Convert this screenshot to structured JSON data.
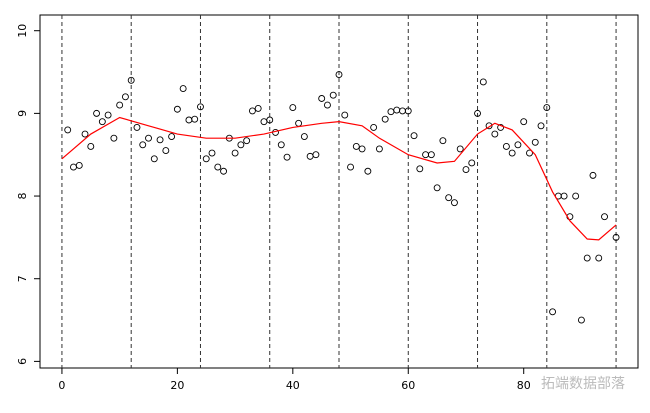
{
  "chart_data": {
    "type": "scatter",
    "xlim": [
      -3.8,
      99.8
    ],
    "ylim": [
      5.92,
      10.19
    ],
    "xticks": [
      0,
      20,
      40,
      60,
      80
    ],
    "yticks": [
      6,
      7,
      8,
      9,
      10
    ],
    "vlines": [
      0,
      12,
      24,
      36,
      48,
      60,
      72,
      84,
      96
    ],
    "watermark": "拓端数据部落",
    "series": [
      {
        "style": "points",
        "color": "#000000",
        "x": [
          1,
          2,
          3,
          4,
          5,
          6,
          7,
          8,
          9,
          10,
          11,
          12,
          13,
          14,
          15,
          16,
          17,
          18,
          19,
          20,
          21,
          22,
          23,
          24,
          25,
          26,
          27,
          28,
          29,
          30,
          31,
          32,
          33,
          34,
          35,
          36,
          37,
          38,
          39,
          40,
          41,
          42,
          43,
          44,
          45,
          46,
          47,
          48,
          49,
          50,
          51,
          52,
          53,
          54,
          55,
          56,
          57,
          58,
          59,
          60,
          61,
          62,
          63,
          64,
          65,
          66,
          67,
          68,
          69,
          70,
          71,
          72,
          73,
          74,
          75,
          76,
          77,
          78,
          79,
          80,
          81,
          82,
          83,
          84,
          85,
          86,
          87,
          88,
          89,
          90,
          91,
          92,
          93,
          94,
          96
        ],
        "values": [
          8.8,
          8.35,
          8.37,
          8.75,
          8.6,
          9.0,
          8.9,
          8.98,
          8.7,
          9.1,
          9.2,
          9.4,
          8.83,
          8.62,
          8.7,
          8.45,
          8.68,
          8.55,
          8.72,
          9.05,
          9.3,
          8.92,
          8.93,
          9.08,
          8.45,
          8.52,
          8.35,
          8.3,
          8.7,
          8.52,
          8.62,
          8.67,
          9.03,
          9.06,
          8.9,
          8.92,
          8.77,
          8.62,
          8.47,
          9.07,
          8.88,
          8.72,
          8.48,
          8.5,
          9.18,
          9.1,
          9.22,
          9.47,
          8.98,
          8.35,
          8.6,
          8.57,
          8.3,
          8.83,
          8.57,
          8.93,
          9.02,
          9.04,
          9.03,
          9.03,
          8.73,
          8.33,
          8.5,
          8.5,
          8.1,
          8.67,
          7.98,
          7.92,
          8.57,
          8.32,
          8.4,
          9.0,
          9.38,
          8.85,
          8.75,
          8.83,
          8.6,
          8.52,
          8.62,
          8.9,
          8.52,
          8.65,
          8.85,
          9.07,
          6.6,
          8.0,
          8.0,
          7.75,
          8.0,
          6.5,
          7.25,
          8.25,
          7.25,
          7.75,
          7.5
        ]
      },
      {
        "style": "line",
        "color": "#ff0000",
        "x": [
          0,
          5,
          10,
          15,
          20,
          25,
          30,
          35,
          40,
          45,
          48,
          52,
          55,
          60,
          65,
          68,
          72,
          75,
          78,
          82,
          85,
          88,
          91,
          93,
          96
        ],
        "values": [
          8.45,
          8.75,
          8.95,
          8.85,
          8.75,
          8.7,
          8.7,
          8.75,
          8.83,
          8.88,
          8.9,
          8.85,
          8.7,
          8.5,
          8.4,
          8.42,
          8.75,
          8.88,
          8.8,
          8.5,
          8.05,
          7.7,
          7.48,
          7.47,
          7.65
        ]
      }
    ]
  }
}
